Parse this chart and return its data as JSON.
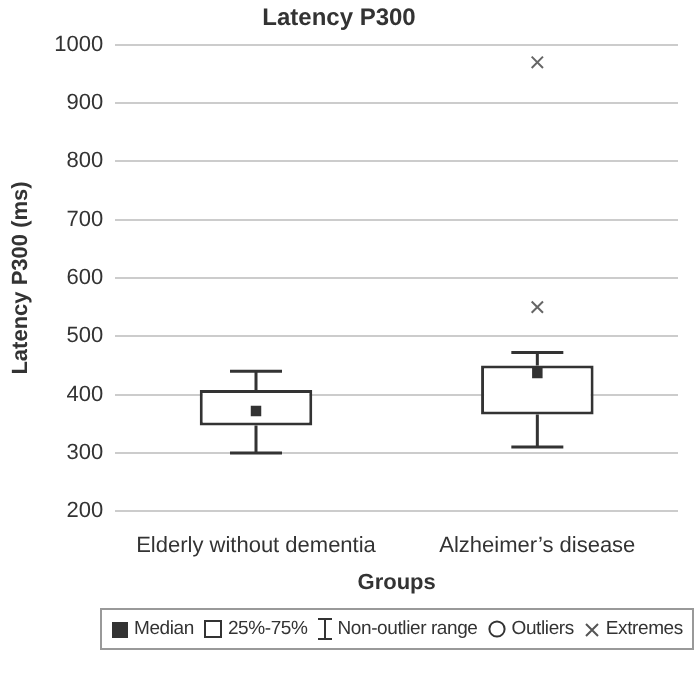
{
  "chart_data": {
    "type": "box",
    "title": "Latency P300",
    "xlabel": "Groups",
    "ylabel": "Latency P300 (ms)",
    "categories": [
      "Elderly without dementia",
      "Alzheimer’s disease"
    ],
    "boxes": [
      {
        "low": 300,
        "q1": 347,
        "median": 372,
        "q3": 408,
        "high": 440
      },
      {
        "low": 310,
        "q1": 366,
        "median": 437,
        "q3": 450,
        "high": 472,
        "outliers": [
          550,
          970
        ]
      }
    ],
    "ylim": [
      200,
      1000
    ],
    "yticks": [
      200,
      300,
      400,
      500,
      600,
      700,
      800,
      900,
      1000
    ],
    "grid": "y",
    "annotations": [
      "Median",
      "25%-75%",
      "Non-outlier range",
      "Outliers",
      "Extremes"
    ]
  }
}
